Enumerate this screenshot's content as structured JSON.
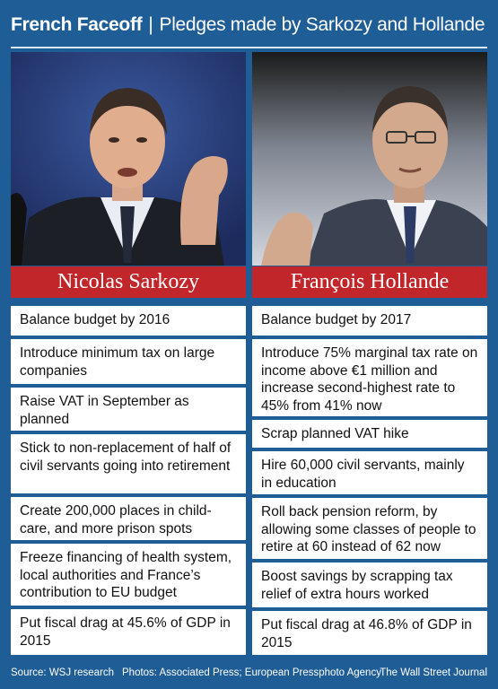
{
  "header": {
    "title": "French Faceoff",
    "separator": "|",
    "subtitle": "Pledges made by Sarkozy and Hollande"
  },
  "left": {
    "name": "Nicolas Sarkozy",
    "pledges": [
      "Balance budget by 2016",
      "Introduce minimum tax on large companies",
      "Raise VAT in September as planned",
      "Stick to non-replacement of half of civil servants going into retirement",
      "Create 200,000 places in child-care, and more prison spots",
      "Freeze financing of health system, local authorities and France’s contribution to EU budget",
      "Put fiscal drag at 45.6% of GDP in 2015"
    ]
  },
  "right": {
    "name": "François Hollande",
    "pledges": [
      "Balance budget by 2017",
      "Introduce 75% marginal tax rate on income above €1 million and increase second-highest rate to 45% from 41% now",
      "Scrap planned VAT hike",
      "Hire 60,000 civil servants, mainly in education",
      "Roll back pension reform, by allowing some classes of people to retire at 60 instead of 62 now",
      "Boost savings by scrapping tax relief of extra hours worked",
      "Put fiscal drag at 46.8% of GDP in 2015"
    ]
  },
  "footer": {
    "source": "Source: WSJ research",
    "photos": "Photos: Associated Press; European Pressphoto Agency",
    "credit": "The Wall Street Journal"
  },
  "colors": {
    "background": "#1f5d96",
    "name_bar": "#c1262b",
    "cell": "#ffffff"
  }
}
